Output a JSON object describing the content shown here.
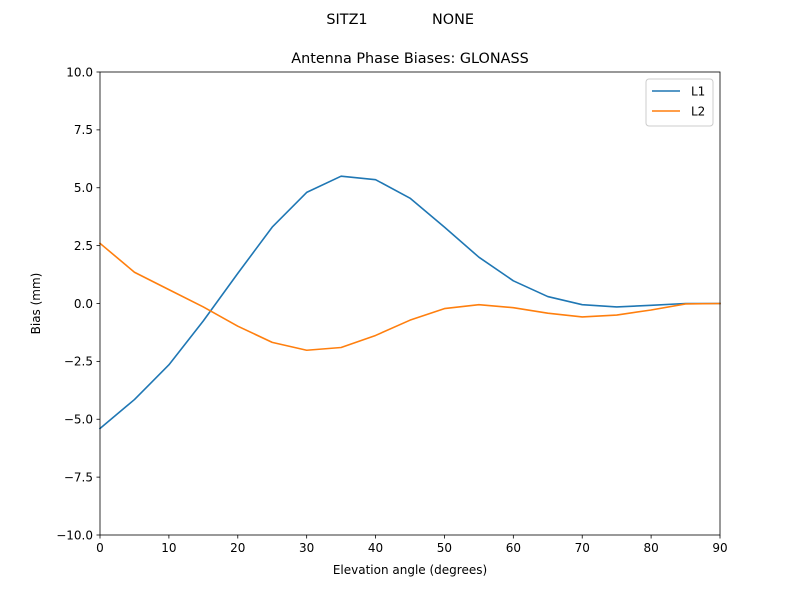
{
  "chart_data": {
    "type": "line",
    "suptitle_left": "SITZ1",
    "suptitle_right": "NONE",
    "title": "Antenna Phase Biases: GLONASS",
    "xlabel": "Elevation angle (degrees)",
    "ylabel": "Bias (mm)",
    "xlim": [
      0,
      90
    ],
    "ylim": [
      -10,
      10
    ],
    "xticks": [
      0,
      10,
      20,
      30,
      40,
      50,
      60,
      70,
      80,
      90
    ],
    "yticks": [
      -10,
      -7.5,
      -5,
      -2.5,
      0,
      2.5,
      5,
      7.5,
      10
    ],
    "ytick_labels": [
      "−10.0",
      "−7.5",
      "−5.0",
      "−2.5",
      "0.0",
      "2.5",
      "5.0",
      "7.5",
      "10.0"
    ],
    "grid": false,
    "legend_position": "top-right",
    "x": [
      0,
      5,
      10,
      15,
      20,
      25,
      30,
      35,
      40,
      45,
      50,
      55,
      60,
      65,
      70,
      75,
      80,
      85,
      90
    ],
    "series": [
      {
        "name": "L1",
        "color": "#1f77b4",
        "values": [
          -5.4,
          -4.15,
          -2.65,
          -0.75,
          1.3,
          3.3,
          4.8,
          5.5,
          5.35,
          4.55,
          3.3,
          2.0,
          0.98,
          0.3,
          -0.05,
          -0.15,
          -0.08,
          0.0,
          0.0
        ]
      },
      {
        "name": "L2",
        "color": "#ff7f0e",
        "values": [
          2.6,
          1.35,
          0.6,
          -0.15,
          -0.98,
          -1.68,
          -2.02,
          -1.9,
          -1.38,
          -0.72,
          -0.22,
          -0.05,
          -0.18,
          -0.42,
          -0.58,
          -0.5,
          -0.28,
          -0.02,
          0.0
        ]
      }
    ]
  }
}
